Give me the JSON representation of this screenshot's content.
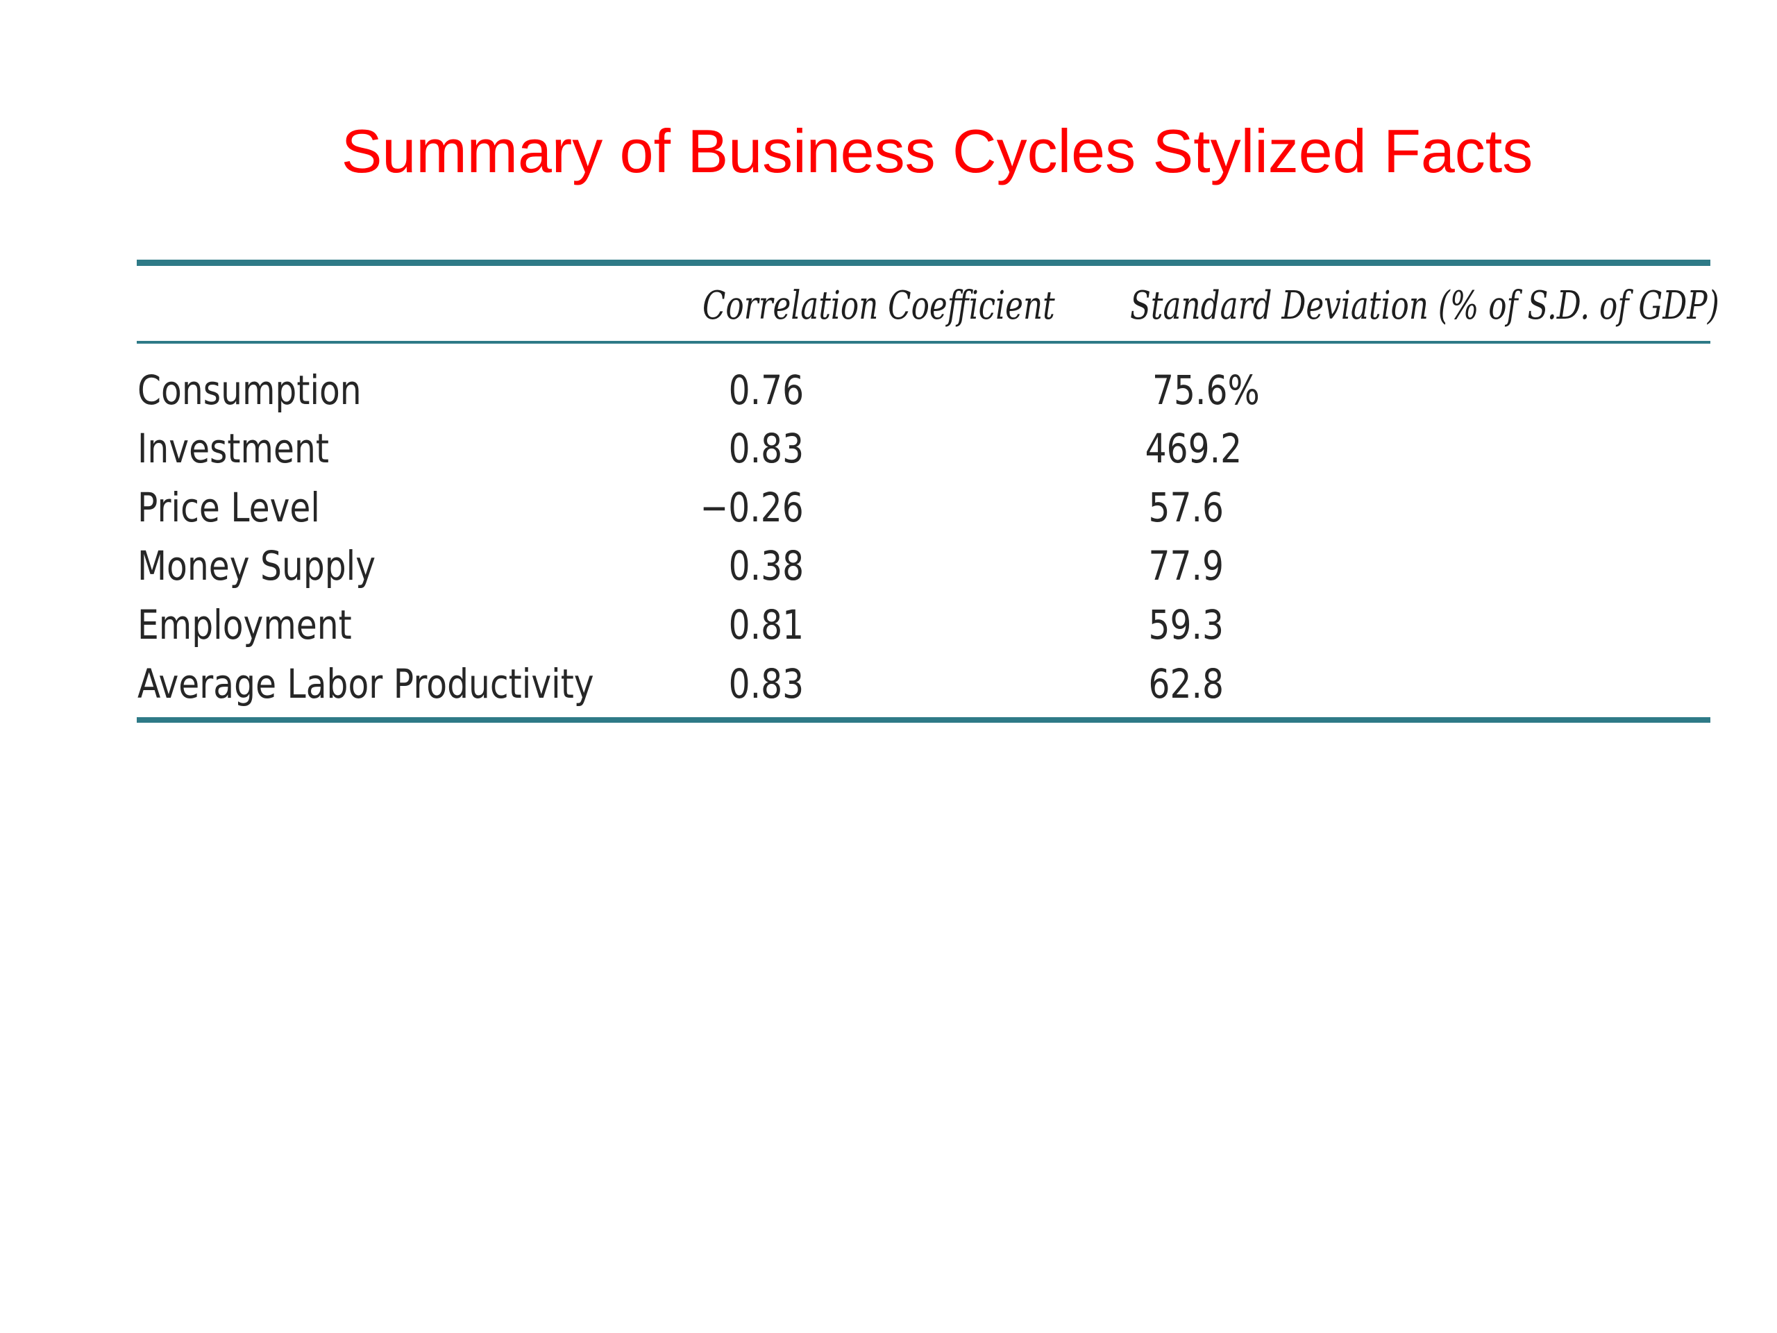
{
  "title": "Summary of Business Cycles Stylized Facts",
  "colors": {
    "title": "#ff0000",
    "rules": "#2e7a87",
    "text": "#262626"
  },
  "table": {
    "headers": {
      "variable": "",
      "correlation": "Correlation Coefficient",
      "std_dev": "Standard Deviation (% of S.D. of GDP)"
    },
    "rows": [
      {
        "variable": "Consumption",
        "correlation": "0.76",
        "std_dev": "75.6%"
      },
      {
        "variable": "Investment",
        "correlation": "0.83",
        "std_dev": "469.2"
      },
      {
        "variable": "Price Level",
        "correlation": "−0.26",
        "std_dev": "57.6"
      },
      {
        "variable": "Money Supply",
        "correlation": "0.38",
        "std_dev": "77.9"
      },
      {
        "variable": "Employment",
        "correlation": "0.81",
        "std_dev": "59.3"
      },
      {
        "variable": "Average Labor Productivity",
        "correlation": "0.83",
        "std_dev": "62.8"
      }
    ]
  }
}
